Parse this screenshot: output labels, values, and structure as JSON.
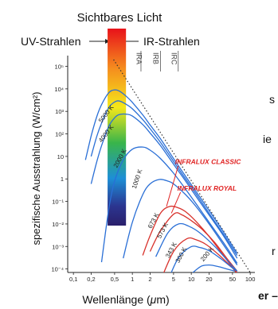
{
  "chart_data": {
    "type": "line",
    "title": "Sichtbares Licht",
    "uv_label": "UV-Strahlen",
    "ir_label": "IR-Strahlen",
    "band_labels": [
      "IRA",
      "IRB",
      "IRC"
    ],
    "xlabel": "Wellenlänge (μm)",
    "ylabel": "spezifische Ausstrahlung (W/cm²)",
    "x_scale": "log",
    "y_scale": "log",
    "xlim": [
      0.08,
      120
    ],
    "ylim": [
      7e-05,
      300000
    ],
    "x_ticks": [
      {
        "v": 0.1,
        "label": "0,1"
      },
      {
        "v": 0.2,
        "label": "0,2"
      },
      {
        "v": 0.5,
        "label": "0,5"
      },
      {
        "v": 1,
        "label": "1"
      },
      {
        "v": 2,
        "label": "2"
      },
      {
        "v": 5,
        "label": "5"
      },
      {
        "v": 10,
        "label": "10"
      },
      {
        "v": 20,
        "label": "20"
      },
      {
        "v": 50,
        "label": "50"
      },
      {
        "v": 100,
        "label": "100"
      }
    ],
    "y_ticks": [
      {
        "v": 100000,
        "label": "10⁵"
      },
      {
        "v": 10000,
        "label": "10⁴"
      },
      {
        "v": 1000,
        "label": "10³"
      },
      {
        "v": 100,
        "label": "10²"
      },
      {
        "v": 10,
        "label": "10"
      },
      {
        "v": 1,
        "label": "1"
      },
      {
        "v": 0.1,
        "label": "10⁻¹"
      },
      {
        "v": 0.01,
        "label": "10⁻²"
      },
      {
        "v": 0.001,
        "label": "10⁻³"
      },
      {
        "v": 0.0001,
        "label": "10⁻⁴"
      }
    ],
    "visible_band_um": [
      0.38,
      0.78
    ],
    "series": [
      {
        "name": "6000 K",
        "color": "#2a6fd6",
        "x": [
          0.16,
          0.2,
          0.25,
          0.3,
          0.4,
          0.5,
          0.6,
          0.8,
          1,
          1.5,
          2,
          3,
          5,
          8,
          12,
          20,
          35,
          60
        ],
        "y": [
          7,
          80,
          600,
          2000,
          6800,
          9000,
          8000,
          4500,
          2500,
          700,
          250,
          60,
          8,
          1.3,
          0.28,
          0.04,
          0.0045,
          0.0005
        ]
      },
      {
        "name": "5000 K",
        "color": "#2a6fd6",
        "label": "5000 K",
        "x": [
          0.2,
          0.25,
          0.3,
          0.4,
          0.5,
          0.6,
          0.8,
          1,
          1.5,
          2,
          3,
          5,
          8,
          12,
          20,
          35,
          60
        ],
        "y": [
          10,
          80,
          300,
          1500,
          2600,
          2900,
          2000,
          1300,
          430,
          170,
          42,
          6,
          1,
          0.22,
          0.03,
          0.0035,
          0.0004
        ]
      },
      {
        "name": "4000 K",
        "color": "#2a6fd6",
        "label": "4000 K",
        "x": [
          0.2,
          0.25,
          0.3,
          0.4,
          0.5,
          0.6,
          0.8,
          1,
          1.5,
          2,
          3,
          5,
          8,
          12,
          20,
          35,
          60
        ],
        "y": [
          0.6,
          6,
          30,
          220,
          520,
          720,
          750,
          620,
          260,
          110,
          30,
          4.5,
          0.8,
          0.17,
          0.025,
          0.003,
          0.0003
        ]
      },
      {
        "name": "2000 K",
        "color": "#2a6fd6",
        "label": "2000 K",
        "x": [
          0.3,
          0.4,
          0.5,
          0.7,
          1,
          1.5,
          2,
          3,
          5,
          8,
          12,
          20,
          35,
          60
        ],
        "y": [
          0.0002,
          0.05,
          0.8,
          7,
          21,
          26,
          19,
          8,
          1.8,
          0.35,
          0.08,
          0.012,
          0.0015,
          0.00018
        ]
      },
      {
        "name": "1000 K",
        "color": "#2a6fd6",
        "label": "1000 K",
        "x": [
          0.7,
          1,
          1.5,
          2,
          2.9,
          4,
          5,
          8,
          12,
          20,
          35,
          60
        ],
        "y": [
          0.0003,
          0.012,
          0.2,
          0.6,
          0.95,
          0.8,
          0.6,
          0.2,
          0.06,
          0.01,
          0.0012,
          0.00015
        ]
      },
      {
        "name": "673 K",
        "color": "#d8322c",
        "label": "673 K",
        "x": [
          1.5,
          2,
          3,
          4.3,
          6,
          8,
          12,
          20,
          35,
          60
        ],
        "y": [
          0.0004,
          0.003,
          0.03,
          0.06,
          0.052,
          0.035,
          0.013,
          0.0028,
          0.0004,
          6e-05
        ]
      },
      {
        "name": "573 K",
        "color": "#d8322c",
        "label": "573 K",
        "x": [
          2,
          3,
          5.1,
          7,
          10,
          15,
          25,
          40,
          60
        ],
        "y": [
          0.0006,
          0.005,
          0.028,
          0.025,
          0.014,
          0.006,
          0.0015,
          0.0003,
          8e-05
        ]
      },
      {
        "name": "473 K",
        "color": "#2a6fd6",
        "x": [
          2.5,
          4,
          6.1,
          9,
          14,
          25,
          45,
          60
        ],
        "y": [
          0.00035,
          0.004,
          0.01,
          0.008,
          0.004,
          0.001,
          0.00018,
          8e-05
        ]
      },
      {
        "name": "343 K",
        "color": "#d8322c",
        "label": "343 K",
        "x": [
          3,
          5,
          8.4,
          12,
          18,
          30,
          50,
          60
        ],
        "y": [
          3e-05,
          0.0006,
          0.0022,
          0.002,
          0.0012,
          0.0004,
          0.00011,
          7e-05
        ]
      },
      {
        "name": "300 K",
        "color": "#2a6fd6",
        "label": "300 K",
        "x": [
          4,
          6,
          9.7,
          14,
          20,
          32,
          50,
          60
        ],
        "y": [
          3e-05,
          0.0003,
          0.00095,
          0.0009,
          0.00065,
          0.00028,
          0.00011,
          8e-05
        ]
      },
      {
        "name": "200 K",
        "color": "#2a6fd6",
        "label": "200 K",
        "x": [
          10,
          14.5,
          20,
          28,
          40,
          55
        ],
        "y": [
          6e-05,
          0.00013,
          0.00015,
          0.00013,
          0.0001,
          8e-05
        ]
      }
    ],
    "wien_line": {
      "x": [
        0.48,
        100
      ],
      "y": [
        200000,
        7e-05
      ]
    },
    "annotations": [
      {
        "text": "INFRALUX CLASSIC",
        "color": "#e02222",
        "x": 5.3,
        "y": 4.5
      },
      {
        "text": "INFRALUX ROYAL",
        "color": "#e02222",
        "x": 5.8,
        "y": 0.3
      }
    ]
  },
  "side_text": [
    "s",
    "ie",
    "r",
    "er –"
  ]
}
